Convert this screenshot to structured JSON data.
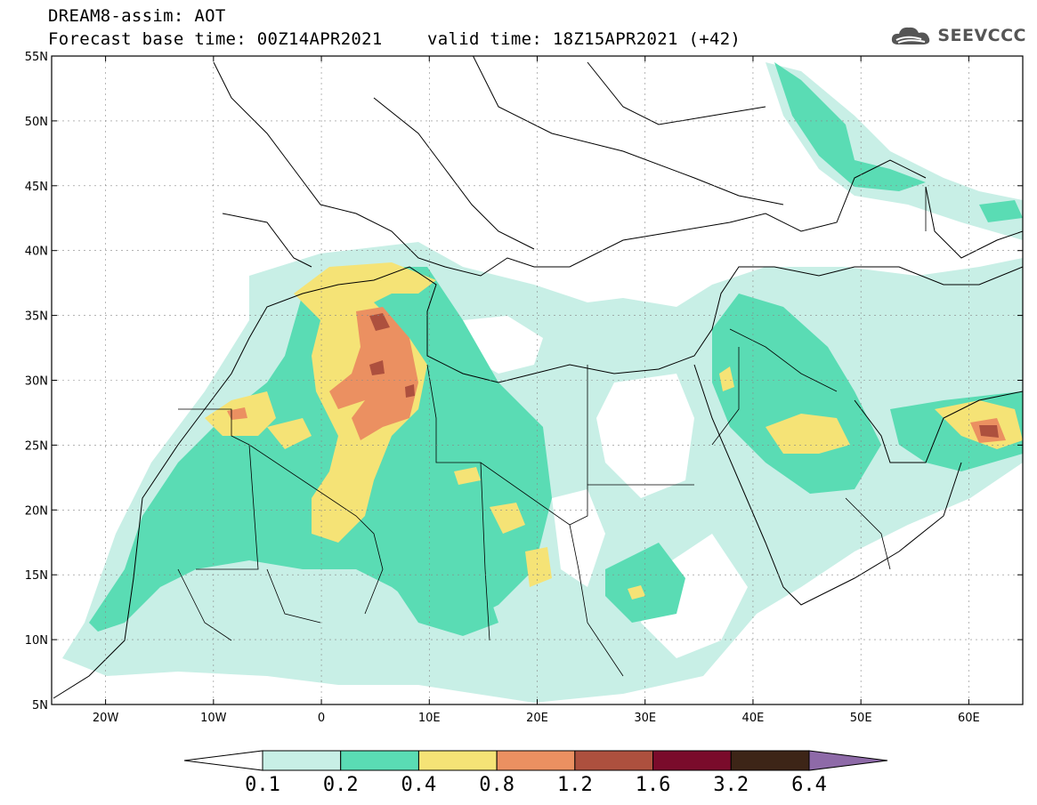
{
  "header": {
    "title": "DREAM8-assim: AOT",
    "base_time": "Forecast base time: 00Z14APR2021",
    "valid_time": "valid time: 18Z15APR2021 (+42)"
  },
  "logo": {
    "text": "SEEVCCC",
    "icon": "cloud-icon"
  },
  "axes": {
    "lat_labels": [
      "55N",
      "50N",
      "45N",
      "40N",
      "35N",
      "30N",
      "25N",
      "20N",
      "15N",
      "10N",
      "5N"
    ],
    "lon_labels": [
      "20W",
      "10W",
      "0",
      "10E",
      "20E",
      "30E",
      "40E",
      "50E",
      "60E"
    ],
    "lat_range": [
      5,
      55
    ],
    "lon_range": [
      -25,
      65
    ]
  },
  "colorbar": {
    "labels": [
      "0.1",
      "0.2",
      "0.4",
      "0.8",
      "1.2",
      "1.6",
      "3.2",
      "6.4"
    ],
    "colors": [
      "#ffffff",
      "#c8efe6",
      "#5adcb4",
      "#f5e376",
      "#eb9061",
      "#ad503e",
      "#7a0b2b",
      "#3d2517",
      "#8e6aa8"
    ]
  }
}
